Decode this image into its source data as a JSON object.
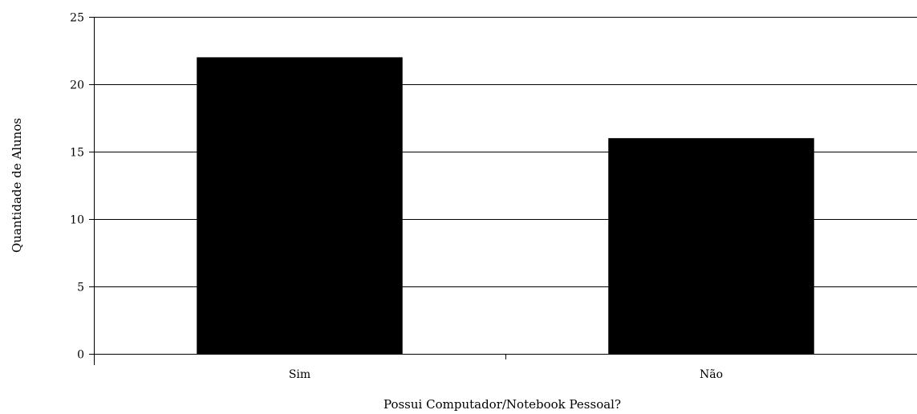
{
  "chart_data": {
    "type": "bar",
    "title": "",
    "categories": [
      "Sim",
      "Não"
    ],
    "values": [
      22,
      16
    ],
    "xlabel": "Possui Computador/Notebook Pessoal?",
    "ylabel": "Quantidade de Alunos",
    "ylim": [
      0,
      25
    ],
    "yticks": [
      "0",
      "5",
      "10",
      "15",
      "20",
      "25"
    ],
    "grid": true,
    "legend": "none",
    "colors": {
      "bar": "#000000",
      "grid": "#000000",
      "axis": "#000000",
      "background": "#ffffff"
    }
  }
}
